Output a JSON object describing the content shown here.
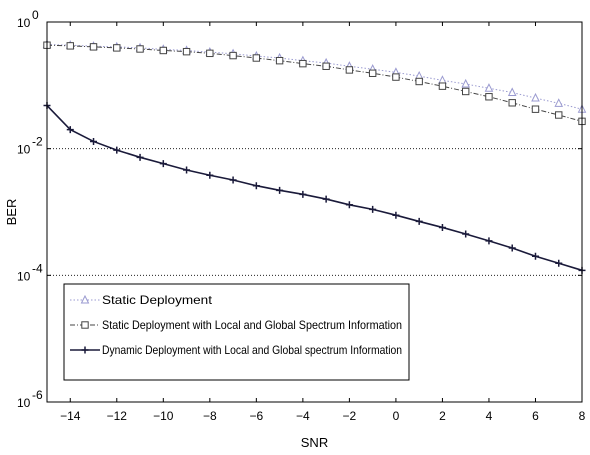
{
  "chart_data": {
    "type": "line",
    "xlabel": "SNR",
    "ylabel": "BER",
    "xlim": [
      -15,
      8
    ],
    "ylim": [
      1e-06,
      1
    ],
    "yscale": "log",
    "x_ticks": [
      -14,
      -12,
      -10,
      -8,
      -6,
      -4,
      -2,
      0,
      2,
      4,
      6,
      8
    ],
    "y_ticks": [
      {
        "value": 1,
        "base": "10",
        "exp": "0"
      },
      {
        "value": 0.01,
        "base": "10",
        "exp": "-2"
      },
      {
        "value": 0.0001,
        "base": "10",
        "exp": "-4"
      },
      {
        "value": 1e-06,
        "base": "10",
        "exp": "-6"
      }
    ],
    "grid": "horizontal dotted at decades",
    "legend_position": "lower-left",
    "x": [
      -15,
      -14,
      -13,
      -12,
      -11,
      -10,
      -9,
      -8,
      -7,
      -6,
      -5,
      -4,
      -3,
      -2,
      -1,
      0,
      1,
      2,
      3,
      4,
      5,
      6,
      7,
      8
    ],
    "series": [
      {
        "name": "Static Deployment",
        "color": "#9a9ad0",
        "marker": "triangle",
        "linestyle": "dotted",
        "values": [
          0.44,
          0.43,
          0.415,
          0.405,
          0.39,
          0.37,
          0.355,
          0.335,
          0.315,
          0.29,
          0.27,
          0.245,
          0.225,
          0.2,
          0.18,
          0.16,
          0.14,
          0.12,
          0.105,
          0.09,
          0.077,
          0.063,
          0.052,
          0.042
        ]
      },
      {
        "name": "Static Deployment with Local and Global Spectrum Information",
        "color": "#444444",
        "marker": "square",
        "linestyle": "dashdot",
        "values": [
          0.43,
          0.42,
          0.405,
          0.39,
          0.375,
          0.355,
          0.34,
          0.32,
          0.295,
          0.27,
          0.245,
          0.22,
          0.2,
          0.175,
          0.155,
          0.135,
          0.115,
          0.097,
          0.08,
          0.066,
          0.053,
          0.042,
          0.034,
          0.027
        ]
      },
      {
        "name": "Dynamic Deployment with Local and Global spectrum Information",
        "color": "#1a1a3a",
        "marker": "plus",
        "linestyle": "solid",
        "values": [
          0.048,
          0.02,
          0.013,
          0.0095,
          0.0073,
          0.0058,
          0.0046,
          0.0038,
          0.0032,
          0.0026,
          0.0022,
          0.0019,
          0.0016,
          0.0013,
          0.0011,
          0.00089,
          0.00071,
          0.00057,
          0.00045,
          0.00035,
          0.00027,
          0.0002,
          0.000155,
          0.00012
        ]
      }
    ]
  }
}
